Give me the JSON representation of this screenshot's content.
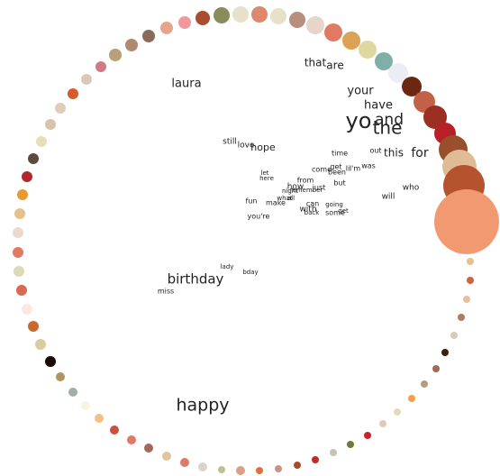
{
  "words": [
    "that",
    "are",
    "laura",
    "your",
    "have",
    "yo",
    "and",
    "the",
    "still",
    "love",
    "hope",
    "time",
    "out",
    "this",
    "for",
    "come",
    "get",
    "li",
    "I'm",
    "was",
    "been",
    "let",
    "here",
    "from",
    "how",
    "just",
    "remember",
    "night",
    "but",
    "who",
    "will",
    "what",
    "all",
    "fun",
    "make",
    "can",
    "going",
    "with",
    "back",
    "some",
    "get",
    "you're",
    "lady",
    "bday",
    "birthday",
    "miss",
    "happy"
  ],
  "ring_colors": [
    "#e6a58a",
    "#f2989b",
    "#a94d2e",
    "#8a8c5a",
    "#e6e1c8",
    "#e08770",
    "#e6e1c8",
    "#b88e7e",
    "#e6d5c8",
    "#e07a64",
    "#dba155",
    "#dcd8a0",
    "#7fb0a8",
    "#ececf5",
    "#6b2712",
    "#c26048",
    "#9b2f22",
    "#b82128",
    "#9a4f2c",
    "#dfbb96",
    "#b5532f",
    "#f19a72",
    "#e6c28a",
    "#c8663f",
    "#e3c2a0",
    "#b07a5e",
    "#d8ccb5",
    "#3a200e",
    "#a36b55",
    "#b59c7a",
    "#f0a050",
    "#e0dcc0",
    "#e0c9b8",
    "#c8222a",
    "#6e7a3a",
    "#c8c2b5",
    "#c02a22",
    "#a84a2c",
    "#c89488",
    "#e07040",
    "#d8a08c",
    "#c0c096",
    "#dad5c8",
    "#e07a64",
    "#e0c49a",
    "#a06a58",
    "#e07a64",
    "#c85040",
    "#f2c080",
    "#f8f2e0",
    "#9eb0a8",
    "#b0945e",
    "#1a0a08",
    "#d8cca0",
    "#c86a30",
    "#fde8e0",
    "#d86a52",
    "#dcd8b8",
    "#e07a64",
    "#ecd8cc",
    "#e6c28a",
    "#e89a30",
    "#b02830",
    "#5a4a40",
    "#e6e0b8",
    "#d8c2a8",
    "#e0ccb8",
    "#d85a2a",
    "#d8c8b8",
    "#d07a88",
    "#b8a078",
    "#b08a70",
    "#8a6a58"
  ]
}
